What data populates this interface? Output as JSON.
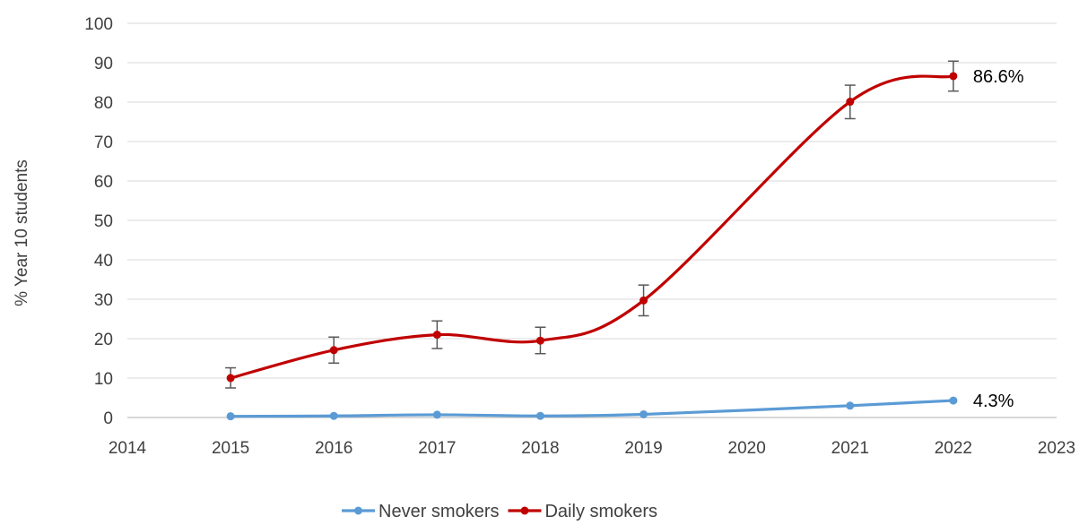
{
  "chart_data": {
    "type": "line",
    "title": "",
    "xlabel": "",
    "ylabel": "% Year 10 students",
    "xlim": [
      2014,
      2023
    ],
    "ylim": [
      0,
      100
    ],
    "x_ticks": [
      2014,
      2015,
      2016,
      2017,
      2018,
      2019,
      2020,
      2021,
      2022,
      2023
    ],
    "y_ticks": [
      0,
      10,
      20,
      30,
      40,
      50,
      60,
      70,
      80,
      90,
      100
    ],
    "grid": "horizontal",
    "legend_position": "bottom",
    "smooth": true,
    "series": [
      {
        "name": "Never smokers",
        "color": "#5b9bd5",
        "x": [
          2015,
          2016,
          2017,
          2018,
          2019,
          2021,
          2022
        ],
        "y": [
          0.3,
          0.4,
          0.7,
          0.4,
          0.8,
          3.0,
          4.3
        ],
        "end_label": "4.3%"
      },
      {
        "name": "Daily smokers",
        "color": "#c00000",
        "x": [
          2015,
          2016,
          2017,
          2018,
          2019,
          2021,
          2022
        ],
        "y": [
          10.0,
          17.1,
          21.0,
          19.5,
          29.7,
          80.1,
          86.6
        ],
        "error_low": [
          7.5,
          13.8,
          17.5,
          16.2,
          25.8,
          75.8,
          82.8
        ],
        "error_high": [
          12.6,
          20.4,
          24.5,
          22.9,
          33.6,
          84.3,
          90.4
        ],
        "end_label": "86.6%"
      }
    ]
  }
}
